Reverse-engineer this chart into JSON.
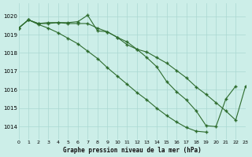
{
  "title": "Graphe pression niveau de la mer (hPa)",
  "bg_color": "#cceee8",
  "grid_color": "#aad8d2",
  "line_color": "#2d6b2d",
  "xlim": [
    0,
    23
  ],
  "ylim": [
    1013.3,
    1020.7
  ],
  "yticks": [
    1014,
    1015,
    1016,
    1017,
    1018,
    1019,
    1020
  ],
  "xticks": [
    0,
    1,
    2,
    3,
    4,
    5,
    6,
    7,
    8,
    9,
    10,
    11,
    12,
    13,
    14,
    15,
    16,
    17,
    18,
    19,
    20,
    21,
    22,
    23
  ],
  "series_A": {
    "x": [
      0,
      1,
      2,
      3,
      4,
      5,
      6,
      7,
      8,
      9,
      10,
      11,
      12,
      13,
      14,
      15,
      16,
      17,
      18,
      19,
      20,
      21,
      22
    ],
    "y": [
      1019.35,
      1019.8,
      1019.6,
      1019.65,
      1019.65,
      1019.65,
      1019.7,
      1020.05,
      1019.2,
      1019.15,
      1018.85,
      1018.45,
      1018.2,
      1017.75,
      1017.25,
      1016.45,
      1015.9,
      1015.45,
      1014.85,
      1014.05,
      1014.0,
      1015.5,
      1016.2
    ]
  },
  "series_B": {
    "x": [
      0,
      1,
      2,
      3,
      4,
      5,
      6,
      7,
      8,
      9,
      10,
      11,
      12,
      13,
      14,
      15,
      16,
      17,
      18,
      19,
      20,
      21,
      22,
      23
    ],
    "y": [
      1019.35,
      1019.8,
      1019.6,
      1019.6,
      1019.65,
      1019.6,
      1019.6,
      1019.6,
      1019.35,
      1019.15,
      1018.85,
      1018.6,
      1018.2,
      1018.05,
      1017.75,
      1017.45,
      1017.05,
      1016.65,
      1016.15,
      1015.75,
      1015.3,
      1014.85,
      1014.35,
      1016.2
    ]
  },
  "series_C": {
    "x": [
      0,
      1,
      2,
      3,
      4,
      5,
      6,
      7,
      8,
      9,
      10,
      11,
      12,
      13,
      14,
      15,
      16,
      17,
      18,
      19
    ],
    "y": [
      1019.35,
      1019.8,
      1019.55,
      1019.35,
      1019.1,
      1018.8,
      1018.5,
      1018.1,
      1017.7,
      1017.2,
      1016.75,
      1016.3,
      1015.85,
      1015.45,
      1015.0,
      1014.6,
      1014.25,
      1013.95,
      1013.75,
      1013.7
    ]
  }
}
